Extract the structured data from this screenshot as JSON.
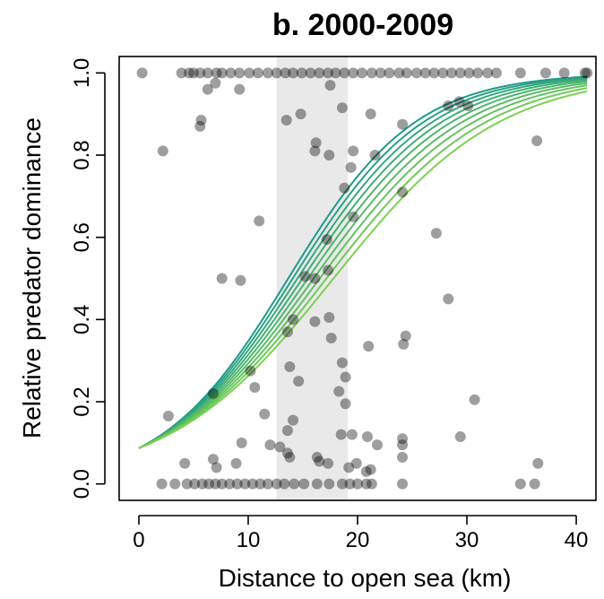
{
  "chart_data": {
    "type": "scatter",
    "title": "b. 2000-2009",
    "xlabel": "Distance to open sea (km)",
    "ylabel": "Relative predator dominance",
    "xlim": [
      -1.8,
      41.8
    ],
    "ylim": [
      -0.04,
      1.04
    ],
    "x_ticks": [
      "0",
      "10",
      "20",
      "30",
      "40"
    ],
    "y_ticks": [
      "0.0",
      "0.2",
      "0.4",
      "0.6",
      "0.8",
      "1.0"
    ],
    "shaded_band": {
      "x_start": 12.6,
      "x_end": 19.1
    },
    "grid": false,
    "legend": "none",
    "colors": {
      "points": "#000000",
      "band": "#e9e9e9",
      "curve_start": "#1f9a8a",
      "curve_end": "#7ad151"
    },
    "curves": {
      "count": 9,
      "model": "logistic",
      "intercept": -2.35,
      "slopes": [
        0.172,
        0.167,
        0.162,
        0.157,
        0.152,
        0.147,
        0.142,
        0.137,
        0.132
      ]
    },
    "points": [
      [
        0.3,
        1.0
      ],
      [
        3.9,
        1.0
      ],
      [
        4.6,
        1.0
      ],
      [
        5.0,
        1.0
      ],
      [
        5.6,
        1.0
      ],
      [
        6.3,
        1.0
      ],
      [
        7.1,
        1.0
      ],
      [
        7.6,
        1.0
      ],
      [
        8.4,
        1.0
      ],
      [
        9.2,
        1.0
      ],
      [
        10.1,
        1.0
      ],
      [
        10.9,
        1.0
      ],
      [
        11.8,
        1.0
      ],
      [
        12.6,
        1.0
      ],
      [
        13.4,
        1.0
      ],
      [
        14.1,
        1.0
      ],
      [
        14.9,
        1.0
      ],
      [
        15.7,
        1.0
      ],
      [
        16.5,
        1.0
      ],
      [
        17.3,
        1.0
      ],
      [
        18.0,
        1.0
      ],
      [
        18.8,
        1.0
      ],
      [
        19.6,
        1.0
      ],
      [
        20.4,
        1.0
      ],
      [
        21.3,
        1.0
      ],
      [
        22.1,
        1.0
      ],
      [
        22.9,
        1.0
      ],
      [
        23.8,
        1.0
      ],
      [
        24.5,
        1.0
      ],
      [
        25.4,
        1.0
      ],
      [
        26.2,
        1.0
      ],
      [
        27.0,
        1.0
      ],
      [
        27.8,
        1.0
      ],
      [
        28.6,
        1.0
      ],
      [
        29.4,
        1.0
      ],
      [
        30.2,
        1.0
      ],
      [
        31.0,
        1.0
      ],
      [
        31.9,
        1.0
      ],
      [
        32.7,
        1.0
      ],
      [
        34.9,
        1.0
      ],
      [
        37.2,
        1.0
      ],
      [
        38.9,
        1.0
      ],
      [
        40.8,
        1.0
      ],
      [
        41.0,
        1.0
      ],
      [
        17.5,
        0.97
      ],
      [
        6.3,
        0.96
      ],
      [
        9.2,
        0.96
      ],
      [
        7.0,
        0.975
      ],
      [
        2.2,
        0.81
      ],
      [
        5.6,
        0.87
      ],
      [
        5.7,
        0.885
      ],
      [
        13.5,
        0.885
      ],
      [
        14.8,
        0.9
      ],
      [
        18.6,
        0.915
      ],
      [
        21.2,
        0.9
      ],
      [
        16.2,
        0.83
      ],
      [
        16.1,
        0.81
      ],
      [
        17.4,
        0.8
      ],
      [
        19.6,
        0.81
      ],
      [
        21.6,
        0.8
      ],
      [
        24.1,
        0.875
      ],
      [
        28.3,
        0.92
      ],
      [
        30.1,
        0.92
      ],
      [
        29.3,
        0.93
      ],
      [
        36.4,
        0.835
      ],
      [
        18.8,
        0.72
      ],
      [
        19.4,
        0.77
      ],
      [
        24.1,
        0.71
      ],
      [
        11.0,
        0.64
      ],
      [
        17.2,
        0.595
      ],
      [
        19.6,
        0.65
      ],
      [
        27.2,
        0.61
      ],
      [
        7.6,
        0.5
      ],
      [
        9.3,
        0.495
      ],
      [
        15.2,
        0.505
      ],
      [
        16.1,
        0.5
      ],
      [
        17.3,
        0.52
      ],
      [
        28.3,
        0.45
      ],
      [
        14.1,
        0.4
      ],
      [
        16.1,
        0.395
      ],
      [
        17.4,
        0.405
      ],
      [
        13.6,
        0.37
      ],
      [
        17.6,
        0.355
      ],
      [
        21.0,
        0.335
      ],
      [
        24.2,
        0.34
      ],
      [
        24.4,
        0.36
      ],
      [
        13.8,
        0.285
      ],
      [
        18.6,
        0.295
      ],
      [
        18.9,
        0.26
      ],
      [
        14.6,
        0.25
      ],
      [
        10.2,
        0.275
      ],
      [
        10.6,
        0.235
      ],
      [
        6.8,
        0.22
      ],
      [
        18.9,
        0.195
      ],
      [
        18.3,
        0.225
      ],
      [
        30.7,
        0.205
      ],
      [
        14.1,
        0.155
      ],
      [
        2.7,
        0.165
      ],
      [
        11.5,
        0.17
      ],
      [
        13.6,
        0.13
      ],
      [
        29.4,
        0.115
      ],
      [
        9.4,
        0.1
      ],
      [
        12.0,
        0.095
      ],
      [
        18.5,
        0.12
      ],
      [
        19.5,
        0.12
      ],
      [
        20.9,
        0.115
      ],
      [
        21.8,
        0.095
      ],
      [
        24.1,
        0.11
      ],
      [
        24.1,
        0.095
      ],
      [
        4.2,
        0.05
      ],
      [
        6.8,
        0.06
      ],
      [
        7.1,
        0.04
      ],
      [
        8.9,
        0.05
      ],
      [
        12.9,
        0.09
      ],
      [
        13.6,
        0.075
      ],
      [
        13.8,
        0.065
      ],
      [
        16.3,
        0.065
      ],
      [
        16.5,
        0.055
      ],
      [
        17.3,
        0.05
      ],
      [
        19.2,
        0.04
      ],
      [
        19.9,
        0.05
      ],
      [
        20.8,
        0.03
      ],
      [
        21.2,
        0.035
      ],
      [
        24.1,
        0.065
      ],
      [
        36.5,
        0.05
      ],
      [
        2.1,
        0.0
      ],
      [
        3.3,
        0.0
      ],
      [
        4.4,
        0.0
      ],
      [
        5.1,
        0.0
      ],
      [
        5.8,
        0.0
      ],
      [
        6.4,
        0.0
      ],
      [
        7.0,
        0.0
      ],
      [
        7.6,
        0.0
      ],
      [
        8.3,
        0.0
      ],
      [
        9.0,
        0.0
      ],
      [
        9.7,
        0.0
      ],
      [
        10.4,
        0.0
      ],
      [
        11.1,
        0.0
      ],
      [
        11.8,
        0.0
      ],
      [
        12.6,
        0.0
      ],
      [
        13.3,
        0.0
      ],
      [
        14.2,
        0.0
      ],
      [
        15.1,
        0.0
      ],
      [
        16.3,
        0.0
      ],
      [
        17.4,
        0.0
      ],
      [
        18.6,
        0.0
      ],
      [
        19.3,
        0.0
      ],
      [
        20.0,
        0.0
      ],
      [
        20.8,
        0.0
      ],
      [
        21.3,
        0.0
      ],
      [
        24.1,
        0.0
      ],
      [
        34.9,
        0.0
      ],
      [
        36.2,
        0.0
      ]
    ]
  }
}
